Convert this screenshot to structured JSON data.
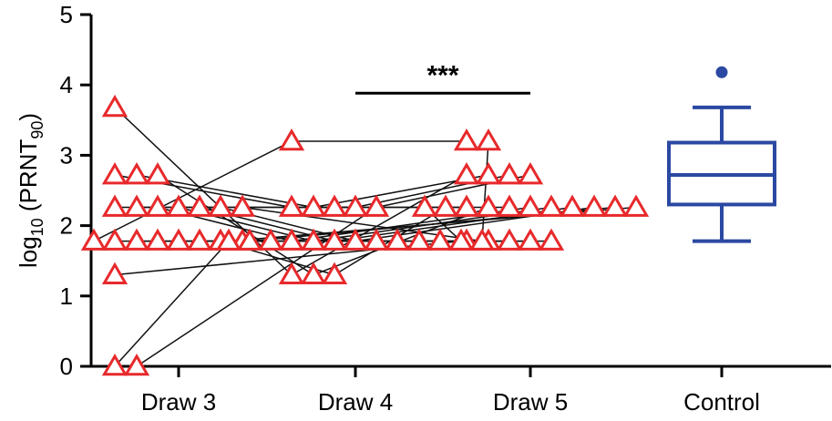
{
  "chart_data": {
    "type": "scatter",
    "title": "",
    "ylabel": {
      "main": "log",
      "sub": "10",
      "paren_open": " (PRNT",
      "sub2": "90",
      "paren_close": ")"
    },
    "ylim": [
      0,
      5
    ],
    "yticks": [
      "0",
      "1",
      "2",
      "3",
      "4",
      "5"
    ],
    "categories": [
      "Draw 3",
      "Draw 4",
      "Draw 5",
      "Control"
    ],
    "marker_color": "#e8292b",
    "control_color": "#2b49a2",
    "significance": {
      "label": "***",
      "from": "Draw 4",
      "to": "Draw 5",
      "y": 4.18
    },
    "subjects": [
      [
        3.68,
        1.3,
        2.72
      ],
      [
        2.72,
        2.26,
        2.26
      ],
      [
        2.72,
        2.26,
        2.72
      ],
      [
        2.72,
        1.3,
        2.26
      ],
      [
        2.26,
        2.26,
        2.26
      ],
      [
        2.26,
        2.26,
        2.72
      ],
      [
        2.26,
        1.78,
        2.26
      ],
      [
        2.26,
        1.78,
        2.26
      ],
      [
        2.26,
        1.78,
        2.26
      ],
      [
        2.26,
        1.78,
        2.26
      ],
      [
        1.78,
        1.78,
        1.78
      ],
      [
        1.78,
        1.78,
        1.78
      ],
      [
        1.78,
        1.78,
        1.78
      ],
      [
        1.78,
        1.78,
        1.78
      ],
      [
        1.78,
        1.78,
        1.78
      ],
      [
        1.78,
        1.3,
        2.26
      ],
      [
        1.78,
        1.78,
        2.26
      ],
      [
        1.3,
        1.78,
        2.26
      ],
      [
        0.0,
        1.78,
        2.26
      ],
      [
        0.0,
        2.26,
        2.72
      ],
      [
        1.78,
        3.2,
        3.2
      ],
      [
        2.26,
        1.78,
        3.2
      ]
    ],
    "control_box": {
      "min": 1.78,
      "q1": 2.3,
      "median": 2.72,
      "q3": 3.18,
      "max": 3.68,
      "outliers": [
        4.18
      ]
    }
  }
}
